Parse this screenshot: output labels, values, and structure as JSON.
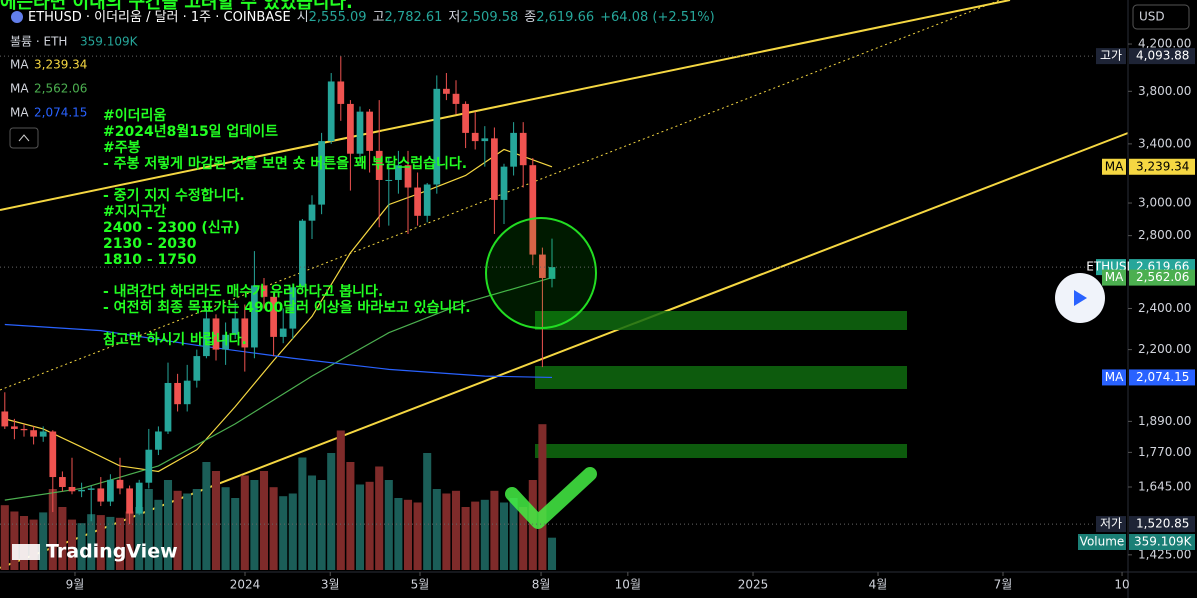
{
  "header": {
    "symbol": "ETHUSD · 이더리움 / 달러 · 1주 · COINBASE",
    "ohlc": [
      {
        "label": "시",
        "value": "2,555.09"
      },
      {
        "label": "고",
        "value": "2,782.61"
      },
      {
        "label": "저",
        "value": "2,509.58"
      },
      {
        "label": "종",
        "value": "2,619.66"
      }
    ],
    "change": "+64.08 (+2.51%)",
    "overlay_text": "에는라면 이내의 구간을 고려할 수 있었습니다."
  },
  "currency": "USD",
  "branding": "TradingView",
  "annotation": {
    "paragraphs": [
      [
        "#이더리움",
        "#2024년8월15일 업데이트",
        "#주봉",
        "- 주봉 저렇게 마감된 것을 보면 숏 버튼을 꽤 부담스럽습니다."
      ],
      [
        "- 중기 지지 수정합니다.",
        "#지지구간",
        "2400 - 2300 (신규)",
        "2130 - 2030",
        "1810 - 1750"
      ],
      [
        "- 내려간다 하더라도 매수가 유리하다고 봅니다.",
        "- 여전히 최종 목표가는 4900달러 이상을 바라보고 있습니다."
      ],
      [
        "참고만 하시기 바랍니다."
      ]
    ]
  },
  "chart_data": {
    "type": "candlestick",
    "log_scale": true,
    "up_color": "#26a69a",
    "down_color": "#ef5350",
    "categories": [
      null,
      null,
      null,
      null,
      null,
      null,
      null,
      null,
      null,
      null,
      null,
      null,
      null,
      null,
      null,
      null,
      null,
      null,
      null,
      null,
      null,
      null,
      null,
      null,
      null,
      null,
      null,
      null,
      null,
      null,
      null,
      null,
      null,
      null,
      null,
      null,
      null,
      null,
      null,
      null,
      null,
      null,
      null,
      null,
      null,
      null,
      null,
      null,
      null,
      null,
      null,
      null,
      null,
      null,
      null,
      null,
      null,
      null
    ],
    "ohlc": [
      [
        1930,
        2010,
        1860,
        1870
      ],
      [
        1870,
        1900,
        1820,
        1860
      ],
      [
        1860,
        1880,
        1830,
        1855
      ],
      [
        1855,
        1870,
        1800,
        1830
      ],
      [
        1830,
        1870,
        1810,
        1850
      ],
      [
        1850,
        1855,
        1560,
        1680
      ],
      [
        1680,
        1700,
        1630,
        1645
      ],
      [
        1645,
        1750,
        1620,
        1630
      ],
      [
        1630,
        1660,
        1610,
        1635
      ],
      [
        1635,
        1650,
        1530,
        1640
      ],
      [
        1640,
        1680,
        1580,
        1595
      ],
      [
        1595,
        1690,
        1580,
        1670
      ],
      [
        1670,
        1750,
        1620,
        1640
      ],
      [
        1640,
        1650,
        1520.85,
        1555
      ],
      [
        1555,
        1670,
        1550,
        1660
      ],
      [
        1660,
        1860,
        1640,
        1780
      ],
      [
        1780,
        1870,
        1760,
        1850
      ],
      [
        1850,
        2140,
        1840,
        2050
      ],
      [
        2050,
        2090,
        1930,
        1960
      ],
      [
        1960,
        2130,
        1930,
        2060
      ],
      [
        2060,
        2200,
        2030,
        2170
      ],
      [
        2170,
        2400,
        2160,
        2350
      ],
      [
        2350,
        2370,
        2150,
        2200
      ],
      [
        2200,
        2330,
        2130,
        2270
      ],
      [
        2270,
        2440,
        2250,
        2350
      ],
      [
        2350,
        2420,
        2100,
        2210
      ],
      [
        2210,
        2710,
        2160,
        2520
      ],
      [
        2520,
        2560,
        2400,
        2460
      ],
      [
        2460,
        2480,
        2170,
        2260
      ],
      [
        2260,
        2400,
        2230,
        2300
      ],
      [
        2300,
        2530,
        2250,
        2510
      ],
      [
        2510,
        2900,
        2490,
        2890
      ],
      [
        2890,
        3050,
        2780,
        2990
      ],
      [
        2990,
        3480,
        2930,
        3420
      ],
      [
        3420,
        3950,
        3400,
        3880
      ],
      [
        3880,
        4093.88,
        3570,
        3700
      ],
      [
        3700,
        3730,
        3080,
        3330
      ],
      [
        3330,
        3680,
        3250,
        3640
      ],
      [
        3640,
        3660,
        3200,
        3350
      ],
      [
        3350,
        3730,
        2850,
        3150
      ],
      [
        3150,
        3300,
        2860,
        3150
      ],
      [
        3150,
        3350,
        3060,
        3250
      ],
      [
        3250,
        3350,
        2810,
        3100
      ],
      [
        3100,
        3200,
        2860,
        2920
      ],
      [
        2920,
        3130,
        2880,
        3120
      ],
      [
        3120,
        3930,
        3060,
        3820
      ],
      [
        3820,
        3950,
        3730,
        3780
      ],
      [
        3780,
        3890,
        3620,
        3700
      ],
      [
        3700,
        3720,
        3370,
        3480
      ],
      [
        3480,
        3640,
        3360,
        3420
      ],
      [
        3420,
        3530,
        3240,
        3440
      ],
      [
        3440,
        3520,
        2810,
        3020
      ],
      [
        3020,
        3260,
        2870,
        3240
      ],
      [
        3240,
        3560,
        3180,
        3480
      ],
      [
        3480,
        3560,
        3100,
        3250
      ],
      [
        3250,
        3300,
        2630,
        2690
      ],
      [
        2690,
        2730,
        2120,
        2560
      ],
      [
        2555.09,
        2782.61,
        2509.58,
        2619.66
      ]
    ],
    "volume": {
      "name": "볼륨 · ETH",
      "badge": "Volume",
      "values": [
        720,
        650,
        600,
        560,
        640,
        900,
        700,
        560,
        520,
        620,
        610,
        590,
        580,
        650,
        700,
        900,
        780,
        1000,
        880,
        850,
        900,
        1200,
        1100,
        920,
        800,
        1050,
        1000,
        1100,
        920,
        820,
        850,
        1250,
        1050,
        1000,
        1300,
        1550,
        1200,
        950,
        980,
        1150,
        1000,
        800,
        780,
        750,
        1300,
        900,
        850,
        880,
        700,
        760,
        780,
        880,
        750,
        800,
        700,
        1000,
        1620,
        359.109
      ],
      "value_labels": [
        null,
        null,
        null,
        null,
        null,
        null,
        null,
        null,
        null,
        null,
        null,
        null,
        null,
        null,
        null,
        null,
        null,
        null,
        null,
        null,
        null,
        null,
        null,
        null,
        null,
        null,
        null,
        null,
        null,
        null,
        null,
        null,
        null,
        null,
        null,
        null,
        null,
        null,
        null,
        null,
        null,
        null,
        null,
        null,
        null,
        null,
        null,
        null,
        null,
        null,
        null,
        null,
        null,
        null,
        null,
        null,
        null,
        "359.109K"
      ],
      "up_color": "#1b5e58",
      "down_color": "#7f2b2a"
    },
    "series": [
      {
        "name": "MA",
        "color": "#f5d742",
        "x": [
          0,
          4,
          8,
          12,
          16,
          20,
          24,
          28,
          32,
          36,
          40,
          44,
          48,
          52,
          57
        ],
        "values": [
          1900,
          1860,
          1790,
          1720,
          1700,
          1780,
          1950,
          2150,
          2360,
          2700,
          2990,
          3080,
          3180,
          3360,
          3239.34
        ],
        "value_labels": [
          null,
          null,
          null,
          null,
          null,
          null,
          null,
          null,
          null,
          null,
          null,
          null,
          null,
          null,
          "3,239.34"
        ]
      },
      {
        "name": "MA",
        "color": "#4caf50",
        "x": [
          0,
          8,
          16,
          24,
          32,
          40,
          48,
          57
        ],
        "values": [
          1600,
          1640,
          1720,
          1880,
          2080,
          2280,
          2430,
          2562.06
        ],
        "value_labels": [
          null,
          null,
          null,
          null,
          null,
          null,
          null,
          "2,562.06"
        ]
      },
      {
        "name": "MA",
        "color": "#2962ff",
        "x": [
          0,
          10,
          20,
          30,
          40,
          50,
          57
        ],
        "values": [
          2320,
          2290,
          2220,
          2160,
          2110,
          2080,
          2074.15
        ],
        "value_labels": [
          null,
          null,
          null,
          null,
          null,
          null,
          "2,074.15"
        ]
      }
    ],
    "xlim": [
      -0.5,
      117
    ],
    "xticks": [
      {
        "value": 7.31,
        "label": "9월"
      },
      {
        "value": 25.02,
        "label": "2024"
      },
      {
        "value": 33.9,
        "label": "3월"
      },
      {
        "value": 43.25,
        "label": "5월"
      },
      {
        "value": 55.86,
        "label": "8월"
      },
      {
        "value": 64.9,
        "label": "10월"
      },
      {
        "value": 77.94,
        "label": "2025"
      },
      {
        "value": 90.96,
        "label": "4월"
      },
      {
        "value": 103.98,
        "label": "7월"
      },
      {
        "value": 116.38,
        "label": "10"
      }
    ],
    "ylim": [
      1380,
      4610
    ],
    "yticks": [
      {
        "value": 4200,
        "label": "4,200.00"
      },
      {
        "value": 3800,
        "label": "3,800.00"
      },
      {
        "value": 3400,
        "label": "3,400.00"
      },
      {
        "value": 3000,
        "label": "3,000.00"
      },
      {
        "value": 2800,
        "label": "2,800.00"
      },
      {
        "value": 2400,
        "label": "2,400.00"
      },
      {
        "value": 2200,
        "label": "2,200.00"
      },
      {
        "value": 1890,
        "label": "1,890.00"
      },
      {
        "value": 1770,
        "label": "1,770.00"
      },
      {
        "value": 1645,
        "label": "1,645.00"
      },
      {
        "value": 1425,
        "label": "1,425.00"
      }
    ],
    "price_labels": [
      {
        "name": "고가",
        "value": 4093.88,
        "label": "4,093.88"
      },
      {
        "name": "저가",
        "value": 1520.85,
        "label": "1,520.85"
      }
    ],
    "last": {
      "name": "ETHUSD",
      "value": 2619.66,
      "label": "2,619.66",
      "color": "#26a69a"
    }
  }
}
